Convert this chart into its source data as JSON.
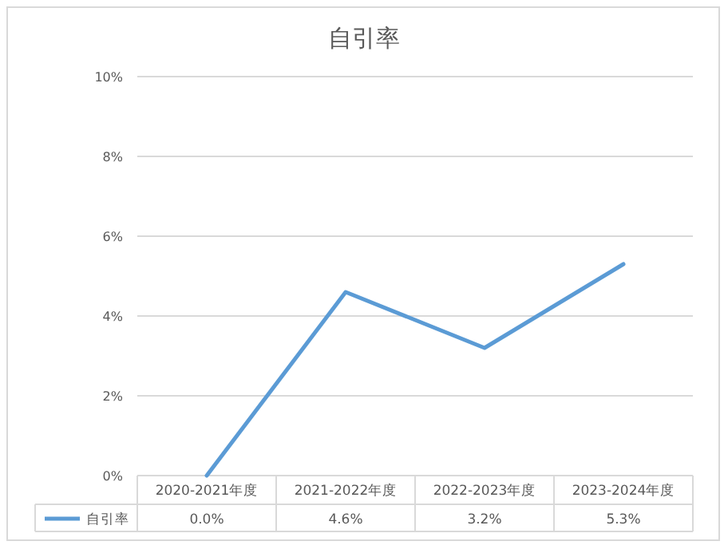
{
  "chart_data": {
    "type": "line",
    "title": "自引率",
    "categories": [
      "2020-2021年度",
      "2021-2022年度",
      "2022-2023年度",
      "2023-2024年度"
    ],
    "series": [
      {
        "name": "自引率",
        "color": "#5b9bd5",
        "values": [
          0.0,
          4.6,
          3.2,
          5.3
        ],
        "value_labels": [
          "0.0%",
          "4.6%",
          "3.2%",
          "5.3%"
        ]
      }
    ],
    "ylim": [
      0,
      10
    ],
    "yticks": [
      {
        "value": 0,
        "label": "0%"
      },
      {
        "value": 2,
        "label": "2%"
      },
      {
        "value": 4,
        "label": "4%"
      },
      {
        "value": 6,
        "label": "6%"
      },
      {
        "value": 8,
        "label": "8%"
      },
      {
        "value": 10,
        "label": "10%"
      }
    ],
    "grid": "y",
    "legend": "bottom",
    "marker": "none",
    "line_style": "solid"
  }
}
